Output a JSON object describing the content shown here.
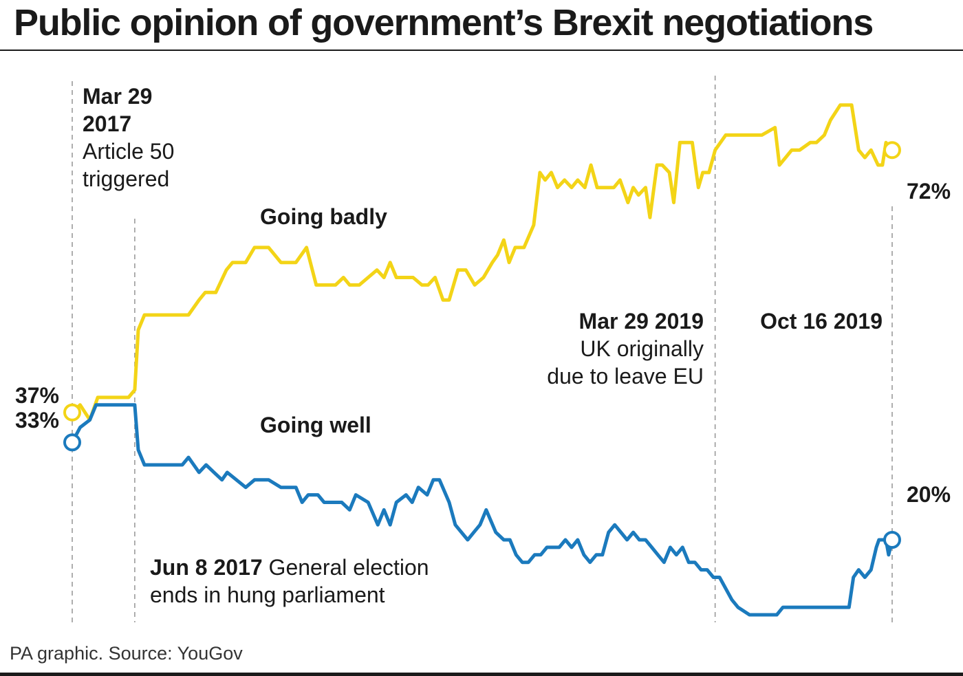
{
  "header": {
    "title": "Public opinion of government’s Brexit negotiations"
  },
  "footer": {
    "source": "PA graphic. Source: YouGov"
  },
  "colors": {
    "going_badly": "#f3d417",
    "going_well": "#1b7abd",
    "text": "#1a1a1a",
    "event_line": "#9a9a9a"
  },
  "chart_data": {
    "type": "line",
    "title": "Public opinion of government’s Brexit negotiations",
    "xlabel": "",
    "ylabel": "",
    "ylim": [
      0,
      100
    ],
    "x_range": [
      "2017-03-29",
      "2019-10-16"
    ],
    "grid": false,
    "legend": "inline labels",
    "series": [
      {
        "name": "Going badly",
        "color": "#f3d417",
        "start_label": "37%",
        "end_label": "72%",
        "points": [
          [
            "2017-03-29",
            37
          ],
          [
            "2017-04-07",
            38
          ],
          [
            "2017-04-18",
            36
          ],
          [
            "2017-04-27",
            39
          ],
          [
            "2017-05-15",
            39
          ],
          [
            "2017-06-01",
            39
          ],
          [
            "2017-06-08",
            40
          ],
          [
            "2017-06-12",
            48
          ],
          [
            "2017-06-19",
            50
          ],
          [
            "2017-07-15",
            50
          ],
          [
            "2017-08-08",
            50
          ],
          [
            "2017-08-20",
            52
          ],
          [
            "2017-08-27",
            53
          ],
          [
            "2017-09-08",
            53
          ],
          [
            "2017-09-20",
            56
          ],
          [
            "2017-09-27",
            57
          ],
          [
            "2017-10-12",
            57
          ],
          [
            "2017-10-22",
            59
          ],
          [
            "2017-11-07",
            59
          ],
          [
            "2017-11-21",
            57
          ],
          [
            "2017-12-08",
            57
          ],
          [
            "2017-12-20",
            59
          ],
          [
            "2017-12-31",
            54
          ],
          [
            "2018-01-22",
            54
          ],
          [
            "2018-01-31",
            55
          ],
          [
            "2018-02-07",
            54
          ],
          [
            "2018-02-18",
            54
          ],
          [
            "2018-02-28",
            55
          ],
          [
            "2018-03-10",
            56
          ],
          [
            "2018-03-18",
            55
          ],
          [
            "2018-03-25",
            57
          ],
          [
            "2018-04-01",
            55
          ],
          [
            "2018-04-20",
            55
          ],
          [
            "2018-04-30",
            54
          ],
          [
            "2018-05-07",
            54
          ],
          [
            "2018-05-15",
            55
          ],
          [
            "2018-05-24",
            52
          ],
          [
            "2018-05-31",
            52
          ],
          [
            "2018-06-10",
            56
          ],
          [
            "2018-06-19",
            56
          ],
          [
            "2018-06-29",
            54
          ],
          [
            "2018-07-09",
            55
          ],
          [
            "2018-07-19",
            57
          ],
          [
            "2018-07-25",
            58
          ],
          [
            "2018-08-01",
            60
          ],
          [
            "2018-08-07",
            57
          ],
          [
            "2018-08-14",
            59
          ],
          [
            "2018-08-24",
            59
          ],
          [
            "2018-09-04",
            62
          ],
          [
            "2018-09-11",
            69
          ],
          [
            "2018-09-17",
            68
          ],
          [
            "2018-09-24",
            69
          ],
          [
            "2018-10-01",
            67
          ],
          [
            "2018-10-09",
            68
          ],
          [
            "2018-10-17",
            67
          ],
          [
            "2018-10-24",
            68
          ],
          [
            "2018-11-01",
            67
          ],
          [
            "2018-11-08",
            70
          ],
          [
            "2018-11-15",
            67
          ],
          [
            "2018-11-21",
            67
          ],
          [
            "2018-12-04",
            67
          ],
          [
            "2018-12-11",
            68
          ],
          [
            "2018-12-20",
            65
          ],
          [
            "2018-12-26",
            67
          ],
          [
            "2019-01-01",
            66
          ],
          [
            "2019-01-09",
            67
          ],
          [
            "2019-01-14",
            63
          ],
          [
            "2019-01-22",
            70
          ],
          [
            "2019-01-28",
            70
          ],
          [
            "2019-02-05",
            69
          ],
          [
            "2019-02-10",
            65
          ],
          [
            "2019-02-17",
            73
          ],
          [
            "2019-02-24",
            73
          ],
          [
            "2019-03-03",
            73
          ],
          [
            "2019-03-10",
            67
          ],
          [
            "2019-03-15",
            69
          ],
          [
            "2019-03-22",
            69
          ],
          [
            "2019-03-29",
            72
          ],
          [
            "2019-04-10",
            74
          ],
          [
            "2019-05-21",
            74
          ],
          [
            "2019-06-05",
            75
          ],
          [
            "2019-06-10",
            70
          ],
          [
            "2019-06-17",
            71
          ],
          [
            "2019-06-24",
            72
          ],
          [
            "2019-07-03",
            72
          ],
          [
            "2019-07-15",
            73
          ],
          [
            "2019-07-22",
            73
          ],
          [
            "2019-07-31",
            74
          ],
          [
            "2019-08-07",
            76
          ],
          [
            "2019-08-18",
            78
          ],
          [
            "2019-08-31",
            78
          ],
          [
            "2019-09-08",
            72
          ],
          [
            "2019-09-15",
            71
          ],
          [
            "2019-09-22",
            72
          ],
          [
            "2019-09-30",
            70
          ],
          [
            "2019-10-05",
            70
          ],
          [
            "2019-10-09",
            73
          ],
          [
            "2019-10-16",
            72
          ]
        ]
      },
      {
        "name": "Going well",
        "color": "#1b7abd",
        "start_label": "33%",
        "end_label": "20%",
        "points": [
          [
            "2017-03-29",
            33
          ],
          [
            "2017-04-07",
            35
          ],
          [
            "2017-04-18",
            36
          ],
          [
            "2017-04-25",
            38
          ],
          [
            "2017-05-15",
            38
          ],
          [
            "2017-06-01",
            38
          ],
          [
            "2017-06-08",
            38
          ],
          [
            "2017-06-12",
            32
          ],
          [
            "2017-06-19",
            30
          ],
          [
            "2017-07-20",
            30
          ],
          [
            "2017-08-01",
            30
          ],
          [
            "2017-08-08",
            31
          ],
          [
            "2017-08-20",
            29
          ],
          [
            "2017-08-28",
            30
          ],
          [
            "2017-09-06",
            29
          ],
          [
            "2017-09-15",
            28
          ],
          [
            "2017-09-21",
            29
          ],
          [
            "2017-10-12",
            27
          ],
          [
            "2017-10-22",
            28
          ],
          [
            "2017-11-07",
            28
          ],
          [
            "2017-11-21",
            27
          ],
          [
            "2017-12-08",
            27
          ],
          [
            "2017-12-15",
            25
          ],
          [
            "2017-12-22",
            26
          ],
          [
            "2018-01-02",
            26
          ],
          [
            "2018-01-09",
            25
          ],
          [
            "2018-01-29",
            25
          ],
          [
            "2018-02-07",
            24
          ],
          [
            "2018-02-14",
            26
          ],
          [
            "2018-02-28",
            25
          ],
          [
            "2018-03-11",
            22
          ],
          [
            "2018-03-18",
            24
          ],
          [
            "2018-03-25",
            22
          ],
          [
            "2018-04-01",
            25
          ],
          [
            "2018-04-12",
            26
          ],
          [
            "2018-04-19",
            25
          ],
          [
            "2018-04-26",
            27
          ],
          [
            "2018-05-06",
            26
          ],
          [
            "2018-05-13",
            28
          ],
          [
            "2018-05-20",
            28
          ],
          [
            "2018-05-31",
            25
          ],
          [
            "2018-06-07",
            22
          ],
          [
            "2018-06-14",
            21
          ],
          [
            "2018-06-21",
            20
          ],
          [
            "2018-06-28",
            21
          ],
          [
            "2018-07-05",
            22
          ],
          [
            "2018-07-12",
            24
          ],
          [
            "2018-07-23",
            21
          ],
          [
            "2018-08-01",
            20
          ],
          [
            "2018-08-08",
            20
          ],
          [
            "2018-08-15",
            18
          ],
          [
            "2018-08-22",
            17
          ],
          [
            "2018-08-29",
            17
          ],
          [
            "2018-09-05",
            18
          ],
          [
            "2018-09-12",
            18
          ],
          [
            "2018-09-19",
            19
          ],
          [
            "2018-09-26",
            19
          ],
          [
            "2018-10-03",
            19
          ],
          [
            "2018-10-10",
            20
          ],
          [
            "2018-10-17",
            19
          ],
          [
            "2018-10-24",
            20
          ],
          [
            "2018-10-31",
            18
          ],
          [
            "2018-11-07",
            17
          ],
          [
            "2018-11-14",
            18
          ],
          [
            "2018-11-21",
            18
          ],
          [
            "2018-11-28",
            21
          ],
          [
            "2018-12-05",
            22
          ],
          [
            "2018-12-12",
            21
          ],
          [
            "2018-12-19",
            20
          ],
          [
            "2018-12-26",
            21
          ],
          [
            "2019-01-02",
            20
          ],
          [
            "2019-01-09",
            20
          ],
          [
            "2019-01-16",
            19
          ],
          [
            "2019-01-23",
            18
          ],
          [
            "2019-01-30",
            17
          ],
          [
            "2019-02-06",
            19
          ],
          [
            "2019-02-13",
            18
          ],
          [
            "2019-02-20",
            19
          ],
          [
            "2019-02-27",
            17
          ],
          [
            "2019-03-06",
            17
          ],
          [
            "2019-03-13",
            16
          ],
          [
            "2019-03-20",
            16
          ],
          [
            "2019-03-27",
            15
          ],
          [
            "2019-04-03",
            15
          ],
          [
            "2019-04-17",
            12
          ],
          [
            "2019-04-24",
            11
          ],
          [
            "2019-05-07",
            10
          ],
          [
            "2019-05-21",
            10
          ],
          [
            "2019-06-01",
            10
          ],
          [
            "2019-06-07",
            10
          ],
          [
            "2019-06-14",
            11
          ],
          [
            "2019-06-21",
            11
          ],
          [
            "2019-07-01",
            11
          ],
          [
            "2019-07-15",
            11
          ],
          [
            "2019-07-22",
            11
          ],
          [
            "2019-08-07",
            11
          ],
          [
            "2019-08-18",
            11
          ],
          [
            "2019-08-28",
            11
          ],
          [
            "2019-09-02",
            15
          ],
          [
            "2019-09-08",
            16
          ],
          [
            "2019-09-15",
            15
          ],
          [
            "2019-09-22",
            16
          ],
          [
            "2019-09-28",
            19
          ],
          [
            "2019-10-01",
            20
          ],
          [
            "2019-10-09",
            20
          ],
          [
            "2019-10-12",
            18
          ],
          [
            "2019-10-16",
            20
          ]
        ]
      }
    ],
    "annotations": [
      {
        "id": "article50",
        "date": "2017-03-29",
        "bold": "Mar 29 2017",
        "bold_lines": [
          "Mar 29",
          "2017"
        ],
        "text_lines": [
          "Article 50",
          "triggered"
        ]
      },
      {
        "id": "election",
        "date": "2017-06-08",
        "bold": "Jun 8 2017",
        "text": "General election",
        "text_line2": "ends in hung parliament"
      },
      {
        "id": "original_leave",
        "date": "2019-03-29",
        "bold": "Mar 29 2019",
        "text_lines": [
          "UK originally",
          "due to leave EU"
        ]
      },
      {
        "id": "oct16",
        "date": "2019-10-16",
        "bold": "Oct 16 2019",
        "text_lines": []
      }
    ],
    "series_labels": [
      {
        "series": "Going badly",
        "text": "Going badly"
      },
      {
        "series": "Going well",
        "text": "Going well"
      }
    ]
  }
}
